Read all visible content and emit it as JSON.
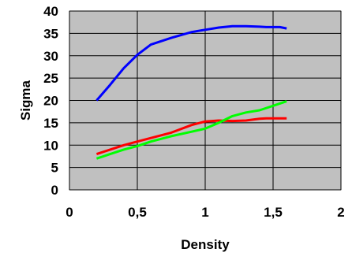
{
  "chart_data": {
    "type": "line",
    "title": "",
    "xlabel": "Density",
    "ylabel": "Sigma",
    "xlim": [
      0,
      2
    ],
    "ylim": [
      0,
      40
    ],
    "x_ticks": [
      "0",
      "0,5",
      "1",
      "1,5",
      "2"
    ],
    "x_tick_values": [
      0,
      0.5,
      1,
      1.5,
      2
    ],
    "y_ticks": [
      "0",
      "5",
      "10",
      "15",
      "20",
      "25",
      "30",
      "35",
      "40"
    ],
    "y_tick_values": [
      0,
      5,
      10,
      15,
      20,
      25,
      30,
      35,
      40
    ],
    "grid": true,
    "plot_background": "#c0c0c0",
    "series": [
      {
        "color": "#0000ff",
        "x": [
          0.2,
          0.3,
          0.4,
          0.5,
          0.6,
          0.75,
          0.9,
          1.0,
          1.1,
          1.2,
          1.3,
          1.4,
          1.45,
          1.55,
          1.6
        ],
        "y": [
          20,
          23.5,
          27.2,
          30.2,
          32.5,
          34.0,
          35.3,
          35.8,
          36.3,
          36.6,
          36.6,
          36.5,
          36.4,
          36.4,
          36.1
        ]
      },
      {
        "color": "#ff0000",
        "x": [
          0.2,
          0.3,
          0.4,
          0.5,
          0.6,
          0.75,
          0.9,
          1.0,
          1.1,
          1.2,
          1.3,
          1.4,
          1.45,
          1.55,
          1.6
        ],
        "y": [
          8.0,
          9.0,
          10.0,
          10.8,
          11.6,
          12.8,
          14.5,
          15.3,
          15.5,
          15.4,
          15.5,
          15.9,
          16.0,
          16.0,
          16.0
        ]
      },
      {
        "color": "#00ff00",
        "x": [
          0.2,
          0.3,
          0.4,
          0.5,
          0.6,
          0.75,
          0.9,
          1.0,
          1.1,
          1.2,
          1.3,
          1.4,
          1.5,
          1.6
        ],
        "y": [
          7.0,
          8.0,
          9.0,
          9.8,
          10.8,
          12.0,
          13.0,
          13.7,
          15.0,
          16.5,
          17.3,
          17.8,
          18.8,
          19.8
        ]
      }
    ]
  }
}
